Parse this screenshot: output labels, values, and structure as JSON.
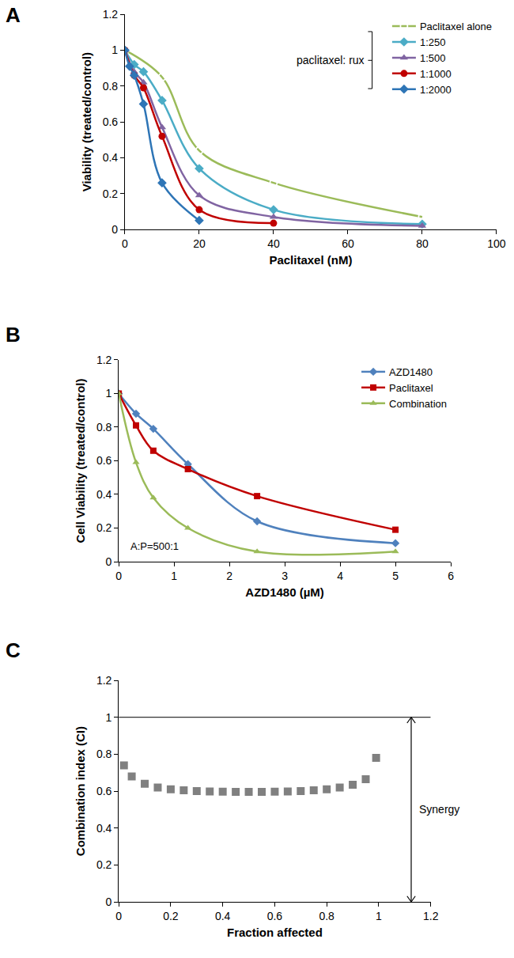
{
  "chart_data": [
    {
      "type": "line",
      "title": "A",
      "x_label": "Paclitaxel (nM)",
      "y_label": "Viability (treated/control)",
      "xlim": [
        0,
        100
      ],
      "xticks": [
        0,
        20,
        40,
        60,
        80,
        100
      ],
      "ylim": [
        0,
        1.2
      ],
      "yticks": [
        0,
        0.2,
        0.4,
        0.6,
        0.8,
        1,
        1.2
      ],
      "grid": false,
      "legend": "upper right",
      "annotations": [
        {
          "text": "paclitaxel: rux"
        }
      ],
      "series": [
        {
          "name": "Paclitaxel alone",
          "color": "#9bbb59",
          "marker": "circle-open",
          "line_style": "spline",
          "x": [
            0,
            10,
            20,
            40,
            80
          ],
          "values": [
            1,
            0.85,
            0.44,
            0.26,
            0.07
          ]
        },
        {
          "name": "1:250",
          "color": "#4bacc6",
          "marker": "diamond",
          "line_style": "spline",
          "x": [
            0,
            2.5,
            5,
            10,
            20,
            40,
            80
          ],
          "values": [
            1,
            0.92,
            0.88,
            0.72,
            0.34,
            0.11,
            0.03
          ]
        },
        {
          "name": "1:500",
          "color": "#8064a2",
          "marker": "triangle-up",
          "line_style": "spline",
          "x": [
            0,
            2.5,
            5,
            10,
            20,
            40,
            80
          ],
          "values": [
            1,
            0.88,
            0.82,
            0.57,
            0.19,
            0.07,
            0.02
          ]
        },
        {
          "name": "1:1000",
          "color": "#c00000",
          "marker": "circle",
          "line_style": "spline",
          "x": [
            0,
            2.5,
            5,
            10,
            20,
            40
          ],
          "values": [
            1,
            0.86,
            0.79,
            0.52,
            0.11,
            0.035
          ]
        },
        {
          "name": "1:2000",
          "color": "#2e75b6",
          "marker": "diamond",
          "line_style": "spline",
          "x": [
            0,
            1.25,
            2.5,
            5,
            10,
            20
          ],
          "values": [
            1,
            0.91,
            0.86,
            0.7,
            0.26,
            0.05
          ]
        }
      ]
    },
    {
      "type": "line",
      "title": "B",
      "x_label": "AZD1480 (µM)",
      "y_label": "Cell Viability (treated/control)",
      "xlim": [
        0,
        6
      ],
      "xticks": [
        0,
        1,
        2,
        3,
        4,
        5,
        6
      ],
      "ylim": [
        0,
        1.2
      ],
      "yticks": [
        0,
        0.2,
        0.4,
        0.6,
        0.8,
        1,
        1.2
      ],
      "grid": false,
      "legend": "upper right",
      "annotations": [
        {
          "text": "A:P=500:1"
        }
      ],
      "series": [
        {
          "name": "AZD1480",
          "color": "#4f81bd",
          "marker": "diamond",
          "line_style": "spline",
          "x": [
            0,
            0.3125,
            0.625,
            1.25,
            2.5,
            5
          ],
          "values": [
            1,
            0.88,
            0.79,
            0.58,
            0.24,
            0.11
          ]
        },
        {
          "name": "Paclitaxel",
          "color": "#c00000",
          "marker": "square",
          "line_style": "spline",
          "x": [
            0,
            0.3125,
            0.625,
            1.25,
            2.5,
            5
          ],
          "values": [
            1,
            0.81,
            0.66,
            0.55,
            0.39,
            0.19
          ]
        },
        {
          "name": "Combination",
          "color": "#9bbb59",
          "marker": "triangle-up",
          "line_style": "spline",
          "x": [
            0,
            0.3125,
            0.625,
            1.25,
            2.5,
            5
          ],
          "values": [
            1,
            0.59,
            0.38,
            0.2,
            0.06,
            0.06
          ]
        }
      ]
    },
    {
      "type": "scatter",
      "title": "C",
      "x_label": "Fraction affected",
      "y_label": "Combination index (CI)",
      "xlim": [
        0,
        1.2
      ],
      "xticks": [
        0,
        0.2,
        0.4,
        0.6,
        0.8,
        1,
        1.2
      ],
      "ylim": [
        0,
        1.2
      ],
      "yticks": [
        0,
        0.2,
        0.4,
        0.6,
        0.8,
        1,
        1.2
      ],
      "grid": false,
      "threshold": 1,
      "annotations": [
        {
          "text": "Synergy"
        }
      ],
      "series": [
        {
          "color": "#808080",
          "marker": "square",
          "x": [
            0.02,
            0.05,
            0.1,
            0.15,
            0.2,
            0.25,
            0.3,
            0.35,
            0.4,
            0.45,
            0.5,
            0.55,
            0.6,
            0.65,
            0.7,
            0.75,
            0.8,
            0.85,
            0.9,
            0.95,
            0.99
          ],
          "values": [
            0.74,
            0.68,
            0.64,
            0.62,
            0.61,
            0.605,
            0.6,
            0.598,
            0.597,
            0.596,
            0.596,
            0.596,
            0.597,
            0.598,
            0.6,
            0.605,
            0.61,
            0.62,
            0.635,
            0.665,
            0.78
          ]
        }
      ]
    }
  ]
}
